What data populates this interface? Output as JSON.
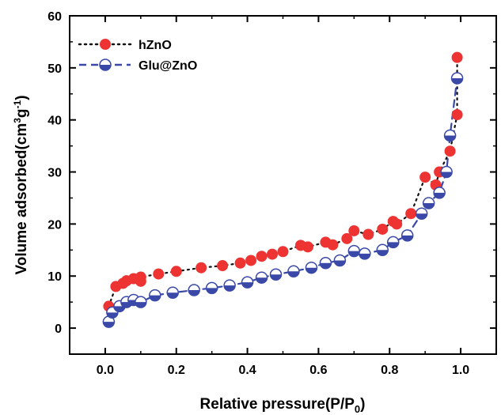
{
  "chart_data": {
    "type": "scatter",
    "xlabel": "Relative pressure(P/P",
    "xlabel_sub": "0",
    "xlabel_end": ")",
    "ylabel": "Volume adsorbed(cm",
    "ylabel_sup1": "3",
    "ylabel_mid": "g",
    "ylabel_sup2": "-1",
    "ylabel_end": ")",
    "xlim": [
      -0.1,
      1.1
    ],
    "ylim": [
      -5,
      60
    ],
    "x_ticks": [
      "0.0",
      "0.2",
      "0.4",
      "0.6",
      "0.8",
      "1.0"
    ],
    "y_ticks": [
      "0",
      "10",
      "20",
      "30",
      "40",
      "50",
      "60"
    ],
    "legend_position": "top-left",
    "series": [
      {
        "name": "hZnO",
        "color": "#ee3333",
        "line_style": "dotted",
        "line_color": "#111111",
        "marker": "filled-circle",
        "points": [
          [
            0.01,
            4.2
          ],
          [
            0.03,
            8.0
          ],
          [
            0.05,
            8.6
          ],
          [
            0.06,
            9.1
          ],
          [
            0.08,
            9.5
          ],
          [
            0.1,
            9.8
          ],
          [
            0.1,
            9.0
          ],
          [
            0.15,
            10.4
          ],
          [
            0.2,
            10.9
          ],
          [
            0.27,
            11.6
          ],
          [
            0.33,
            12.0
          ],
          [
            0.38,
            12.5
          ],
          [
            0.41,
            13.0
          ],
          [
            0.44,
            13.8
          ],
          [
            0.47,
            14.2
          ],
          [
            0.5,
            14.7
          ],
          [
            0.55,
            15.9
          ],
          [
            0.57,
            15.6
          ],
          [
            0.62,
            16.5
          ],
          [
            0.64,
            16.0
          ],
          [
            0.68,
            17.2
          ],
          [
            0.7,
            18.7
          ],
          [
            0.74,
            18.0
          ],
          [
            0.78,
            19.0
          ],
          [
            0.81,
            20.5
          ],
          [
            0.82,
            20.0
          ],
          [
            0.86,
            22.0
          ],
          [
            0.9,
            29.0
          ],
          [
            0.93,
            27.5
          ],
          [
            0.94,
            30.0
          ],
          [
            0.97,
            34.0
          ],
          [
            0.99,
            41.0
          ],
          [
            0.99,
            52.0
          ]
        ]
      },
      {
        "name": "Glu@ZnO",
        "color": "#3a49a8",
        "line_style": "dashed",
        "line_color": "#3a49a8",
        "marker": "half-filled-circle",
        "points": [
          [
            0.01,
            1.2
          ],
          [
            0.02,
            3.0
          ],
          [
            0.04,
            4.2
          ],
          [
            0.06,
            5.0
          ],
          [
            0.08,
            5.4
          ],
          [
            0.1,
            5.0
          ],
          [
            0.14,
            6.3
          ],
          [
            0.19,
            6.8
          ],
          [
            0.25,
            7.3
          ],
          [
            0.3,
            7.7
          ],
          [
            0.35,
            8.2
          ],
          [
            0.4,
            8.8
          ],
          [
            0.44,
            9.7
          ],
          [
            0.48,
            10.3
          ],
          [
            0.53,
            10.9
          ],
          [
            0.58,
            11.6
          ],
          [
            0.62,
            12.5
          ],
          [
            0.66,
            13.0
          ],
          [
            0.7,
            14.8
          ],
          [
            0.73,
            14.3
          ],
          [
            0.78,
            15.0
          ],
          [
            0.81,
            16.5
          ],
          [
            0.85,
            17.8
          ],
          [
            0.89,
            22.0
          ],
          [
            0.91,
            24.0
          ],
          [
            0.94,
            26.0
          ],
          [
            0.96,
            30.0
          ],
          [
            0.97,
            37.0
          ],
          [
            0.99,
            48.0
          ]
        ]
      }
    ]
  }
}
